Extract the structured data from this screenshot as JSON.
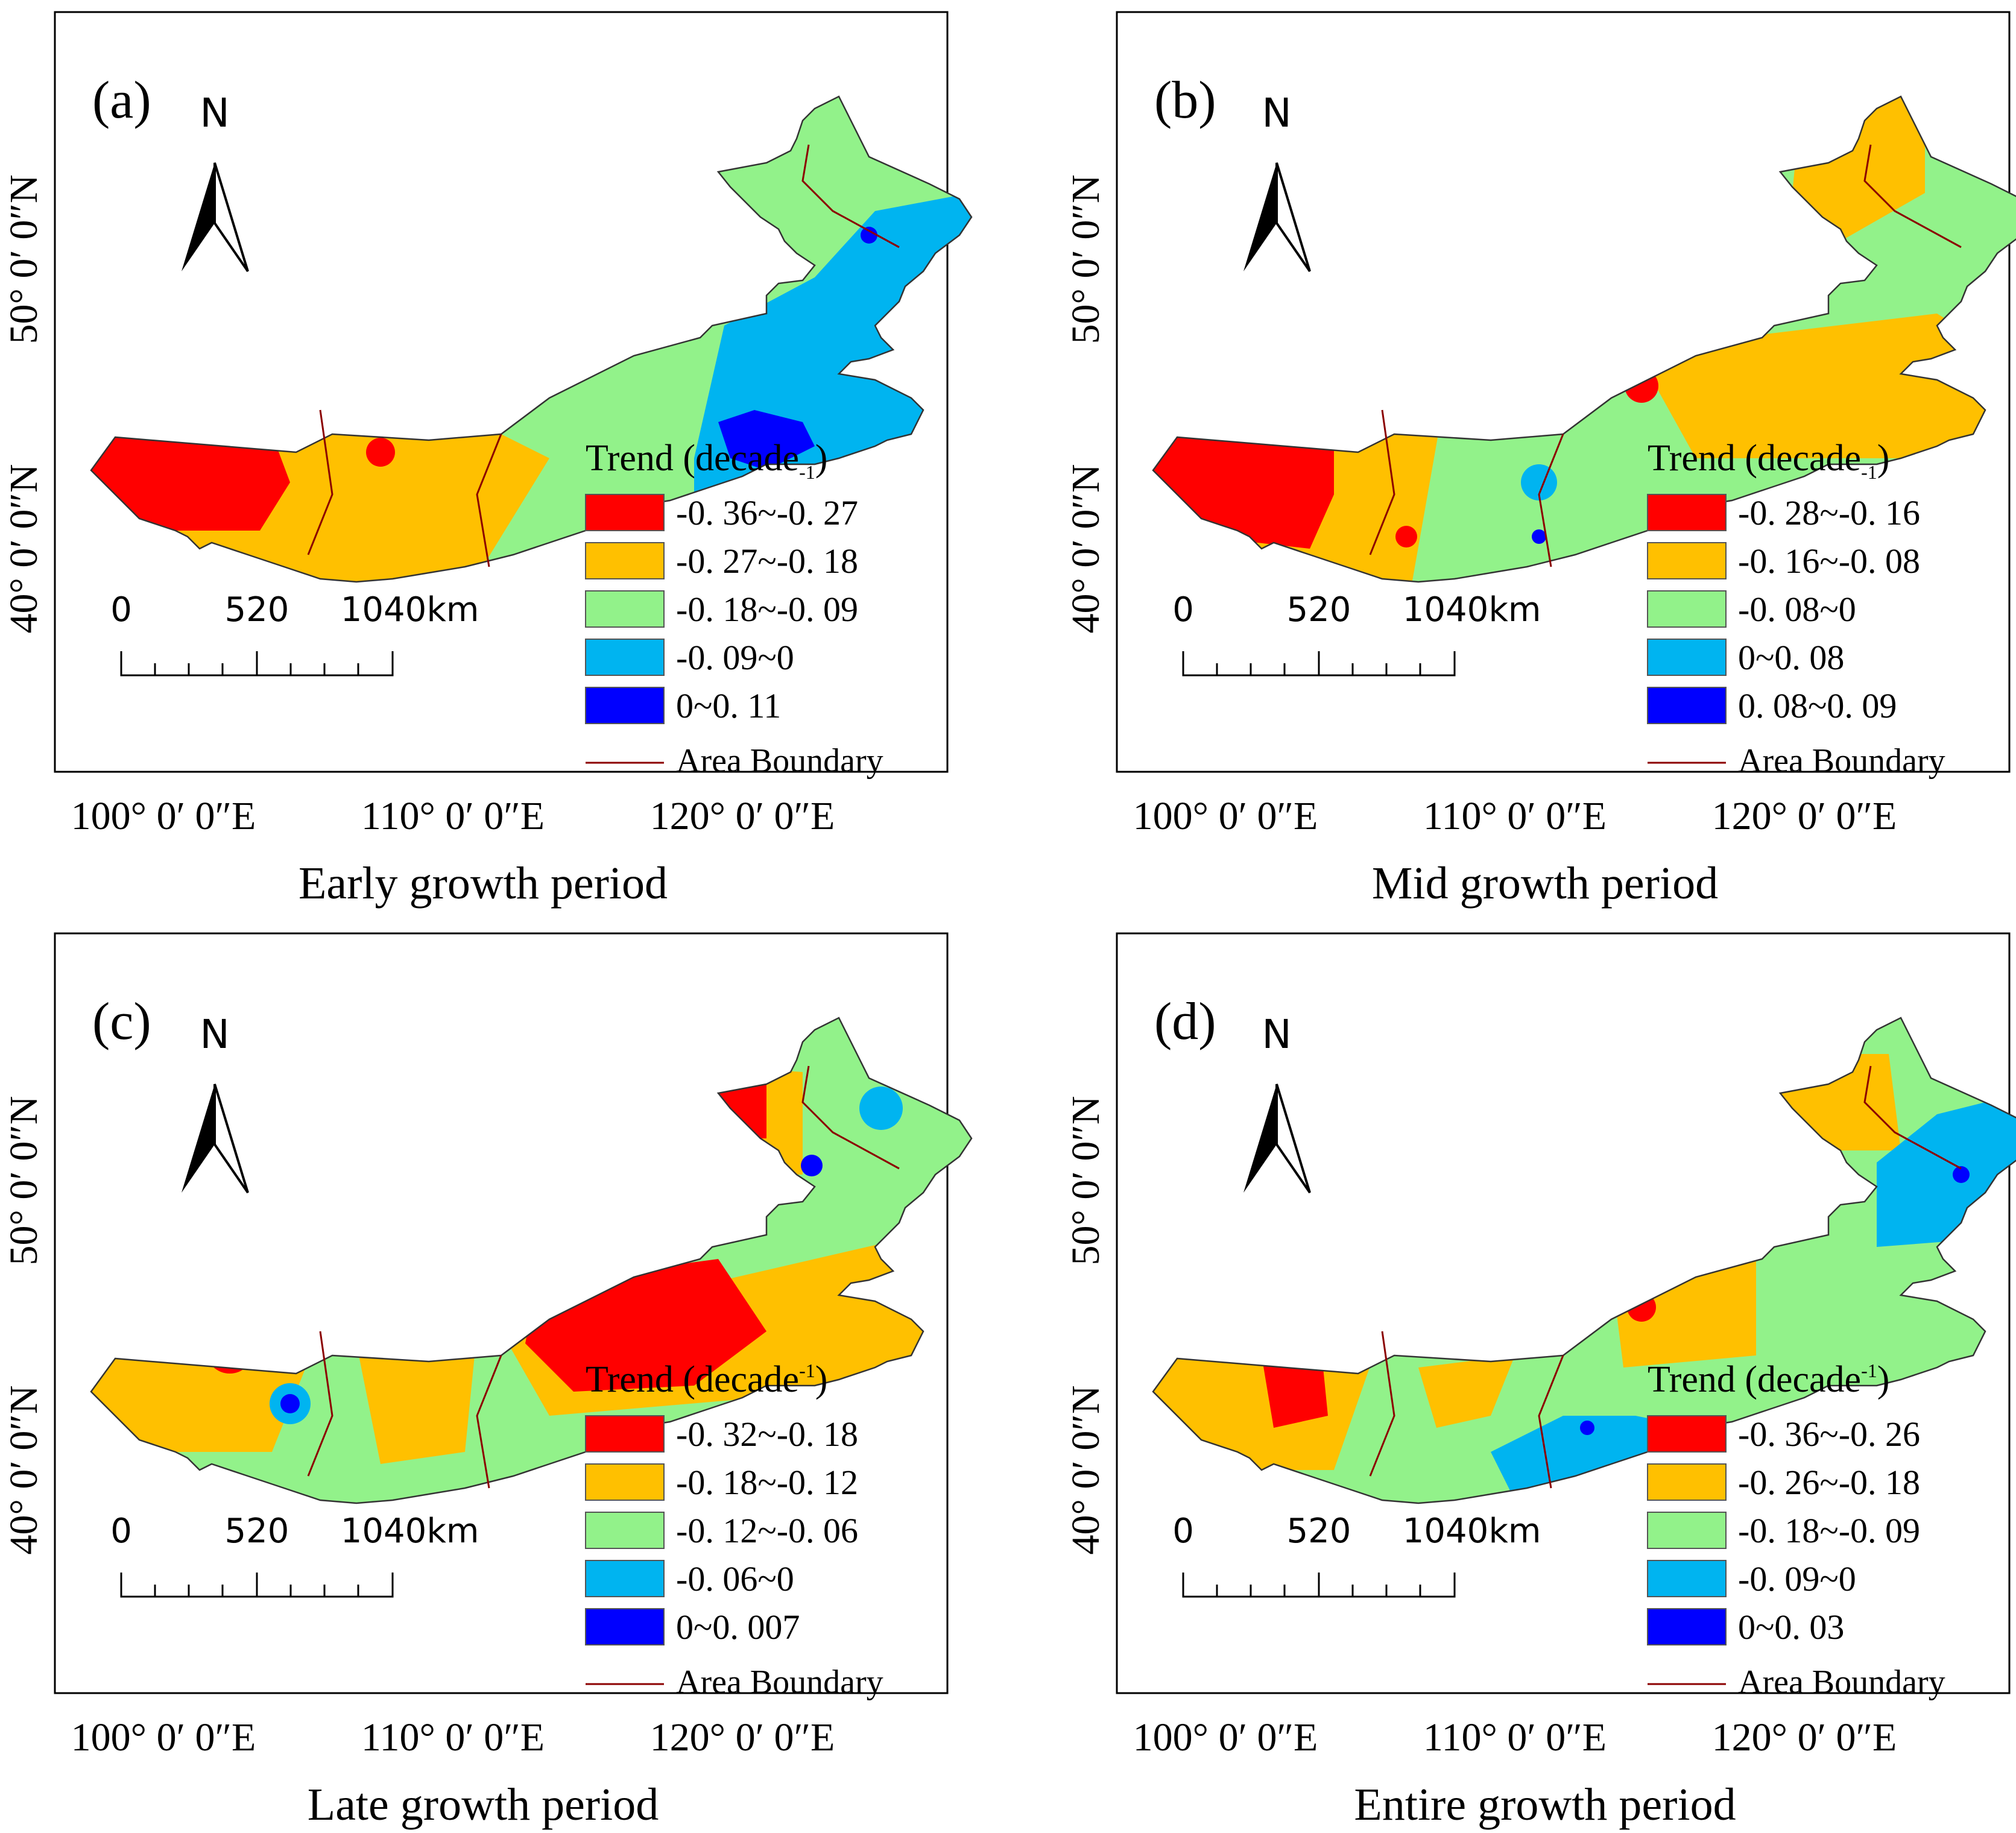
{
  "figure": {
    "axes": {
      "lat_labels": [
        "50° 0′ 0″N",
        "40° 0′ 0″N"
      ],
      "lon_labels": [
        "100° 0′ 0″E",
        "110° 0′ 0″E",
        "120° 0′ 0″E"
      ]
    },
    "north_arrow_label": "N",
    "scalebar": {
      "ticks": [
        "0",
        "520",
        "1040"
      ],
      "unit": "km"
    },
    "legend_boundary_label": "Area Boundary",
    "panels": [
      {
        "id": "a",
        "label": "(a)",
        "caption": "Early growth period",
        "legend_title_text": "Trend (decade",
        "legend_title_sup": "-1",
        "legend_title_close": ")",
        "legend": [
          {
            "label": "-0. 36~-0. 27",
            "color": "#ff0000"
          },
          {
            "label": "-0. 27~-0. 18",
            "color": "#ffc000"
          },
          {
            "label": "-0. 18~-0. 09",
            "color": "#92f28a"
          },
          {
            "label": "-0. 09~0",
            "color": "#00b4f0"
          },
          {
            "label": "0~0. 11",
            "color": "#0000ff"
          }
        ]
      },
      {
        "id": "b",
        "label": "(b)",
        "caption": "Mid growth period",
        "legend_title_text": "Trend (decade",
        "legend_title_sup": "-1",
        "legend_title_close": ")",
        "legend": [
          {
            "label": "-0. 28~-0. 16",
            "color": "#ff0000"
          },
          {
            "label": "-0. 16~-0. 08",
            "color": "#ffc000"
          },
          {
            "label": "-0. 08~0",
            "color": "#92f28a"
          },
          {
            "label": "0~0. 08",
            "color": "#00b4f0"
          },
          {
            "label": "0. 08~0. 09",
            "color": "#0000ff"
          }
        ]
      },
      {
        "id": "c",
        "label": "(c)",
        "caption": "Late growth period",
        "legend_title_text": "Trend (decade",
        "legend_title_sup": "-1",
        "legend_title_close": ")",
        "legend": [
          {
            "label": "-0. 32~-0. 18",
            "color": "#ff0000"
          },
          {
            "label": "-0. 18~-0. 12",
            "color": "#ffc000"
          },
          {
            "label": "-0. 12~-0. 06",
            "color": "#92f28a"
          },
          {
            "label": "-0. 06~0",
            "color": "#00b4f0"
          },
          {
            "label": "0~0. 007",
            "color": "#0000ff"
          }
        ]
      },
      {
        "id": "d",
        "label": "(d)",
        "caption": "Entire growth period",
        "legend_title_text": "Trend (decade",
        "legend_title_sup": "-1",
        "legend_title_close": ")",
        "legend": [
          {
            "label": "-0. 36~-0. 26",
            "color": "#ff0000"
          },
          {
            "label": "-0. 26~-0. 18",
            "color": "#ffc000"
          },
          {
            "label": "-0. 18~-0. 09",
            "color": "#92f28a"
          },
          {
            "label": "-0. 09~0",
            "color": "#00b4f0"
          },
          {
            "label": "0~0. 03",
            "color": "#0000ff"
          }
        ]
      }
    ],
    "colors": {
      "boundary": "#8b0000",
      "outline": "#333333",
      "frame": "#000000"
    }
  }
}
